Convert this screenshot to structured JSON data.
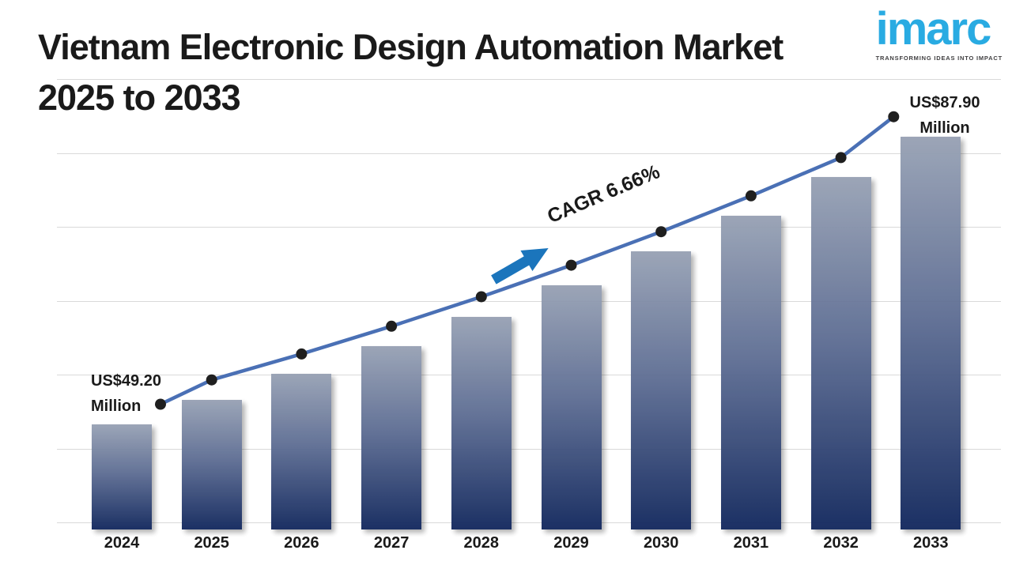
{
  "header": {
    "title_line1": "Vietnam Electronic Design Automation Market",
    "title_line2": "2025 to 2033"
  },
  "logo": {
    "brand": "imarc",
    "tagline": "TRANSFORMING IDEAS INTO IMPACT"
  },
  "chart_data": {
    "type": "bar",
    "title": "Vietnam Electronic Design Automation Market 2025 to 2033",
    "categories": [
      "2024",
      "2025",
      "2026",
      "2027",
      "2028",
      "2029",
      "2030",
      "2031",
      "2032",
      "2033"
    ],
    "series": [
      {
        "name": "Market Size (US$ Million)",
        "type": "bar",
        "values": [
          49.2,
          52.48,
          55.97,
          59.7,
          63.67,
          67.91,
          72.43,
          77.26,
          82.4,
          87.9
        ]
      },
      {
        "name": "Trend",
        "type": "line",
        "values": [
          49.2,
          52.48,
          55.97,
          59.7,
          63.67,
          67.91,
          72.43,
          77.26,
          82.4,
          87.9
        ]
      }
    ],
    "xlabel": "",
    "ylabel": "",
    "ylim": [
      35,
      95
    ],
    "grid": true,
    "gridline_count": 7,
    "legend": "none",
    "annotations": {
      "start_value": {
        "line1": "US$49.20",
        "line2": "Million"
      },
      "end_value": {
        "line1": "US$87.90",
        "line2": "Million"
      },
      "cagr": "CAGR 6.66%"
    }
  },
  "colors": {
    "bar_gradient_top": "#97a1b4",
    "bar_gradient_bottom": "#10265c",
    "trend_line": "#4a70b5",
    "marker": "#1f1f1f",
    "cagr_arrow": "#1b75bc",
    "logo_blue": "#29abe2",
    "gridline": "#d9d9d9",
    "text": "#1a1a1a"
  }
}
